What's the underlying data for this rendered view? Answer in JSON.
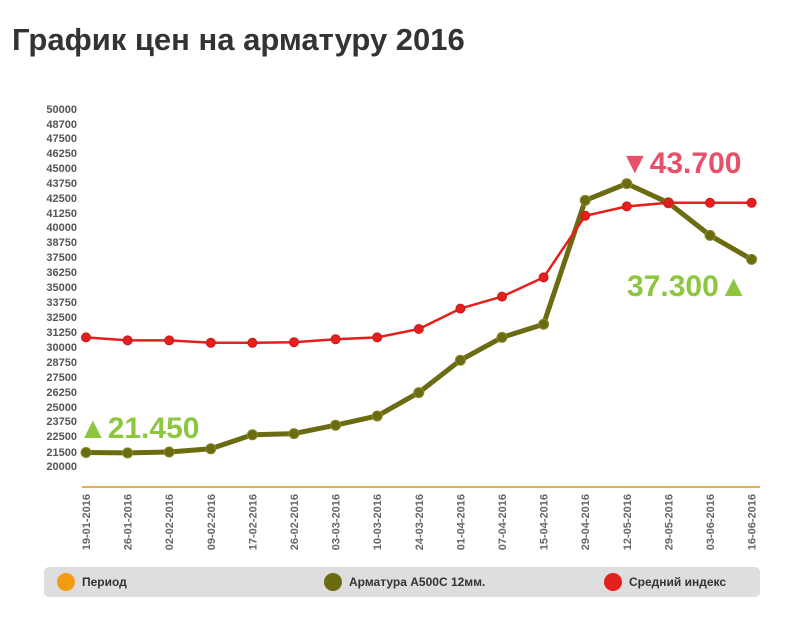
{
  "chart_data": {
    "type": "line",
    "title": "График цен на арматуру 2016",
    "xlabel": "",
    "ylabel": "",
    "ylim": [
      20000,
      50000
    ],
    "y_ticks": [
      "50000",
      "48700",
      "47500",
      "46250",
      "45000",
      "43750",
      "42500",
      "41250",
      "40000",
      "38750",
      "37500",
      "36250",
      "35000",
      "33750",
      "32500",
      "31250",
      "30000",
      "28750",
      "27500",
      "26250",
      "25000",
      "23750",
      "22500",
      "21500",
      "20000"
    ],
    "categories": [
      "19-01-2016",
      "26-01-2016",
      "02-02-2016",
      "09-02-2016",
      "17-02-2016",
      "26-02-2016",
      "03-03-2016",
      "10-03-2016",
      "24-03-2016",
      "01-04-2016",
      "07-04-2016",
      "15-04-2016",
      "29-04-2016",
      "12-05-2016",
      "29-05-2016",
      "03-06-2016",
      "16-06-2016"
    ],
    "series": [
      {
        "name": "Арматура А500С 12мм.",
        "color": "#6b6b12",
        "values": [
          21450,
          21400,
          21500,
          21700,
          22600,
          22700,
          23400,
          24200,
          26200,
          28900,
          30800,
          31900,
          42300,
          43700,
          42100,
          39300,
          37300
        ]
      },
      {
        "name": "Средний индекс",
        "color": "#e3201b",
        "values": [
          30800,
          30550,
          30550,
          30350,
          30350,
          30400,
          30650,
          30800,
          31500,
          33200,
          34200,
          35800,
          41000,
          41800,
          42100,
          42100,
          42100
        ]
      }
    ],
    "annotations": [
      {
        "text": "▼43.700",
        "color": "#e8506a",
        "anchor_category": "12-05-2016"
      },
      {
        "text": "37.300▲",
        "color": "#8dc63f",
        "anchor_category": "16-06-2016"
      },
      {
        "text": "▲21.450",
        "color": "#8dc63f",
        "anchor_category": "19-01-2016"
      }
    ],
    "legend": {
      "placement": "bottom",
      "items": [
        {
          "label": "Период",
          "color": "#f39c12"
        },
        {
          "label": "Арматура А500С 12мм.",
          "color": "#6b6b12"
        },
        {
          "label": "Средний индекс",
          "color": "#e3201b"
        }
      ]
    },
    "grid": false
  }
}
